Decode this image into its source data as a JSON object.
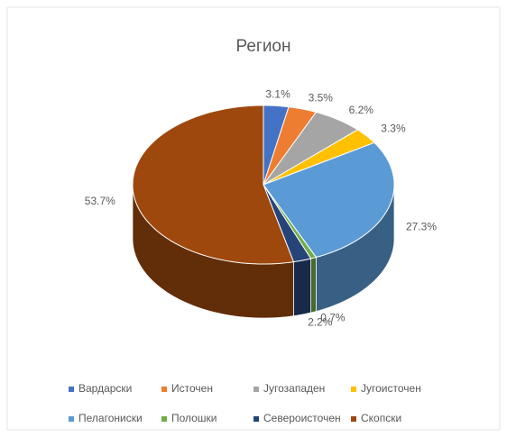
{
  "chart_data": {
    "type": "pie",
    "title": "Регион",
    "categories": [
      "Вардарски",
      "Источен",
      "Југозападен",
      "Југоисточен",
      "Пелагониски",
      "Полошки",
      "Североисточен",
      "Скопски"
    ],
    "values": [
      3.1,
      3.5,
      6.2,
      3.3,
      27.3,
      0.7,
      2.2,
      53.7
    ],
    "value_labels": [
      "3.1%",
      "3.5%",
      "6.2%",
      "3.3%",
      "27.3%",
      "0.7%",
      "2.2%",
      "53.7%"
    ],
    "colors": [
      "#4472c4",
      "#ed7d31",
      "#a5a5a5",
      "#ffc000",
      "#5b9bd5",
      "#70ad47",
      "#264478",
      "#9e480e"
    ],
    "legend": "bottom"
  }
}
